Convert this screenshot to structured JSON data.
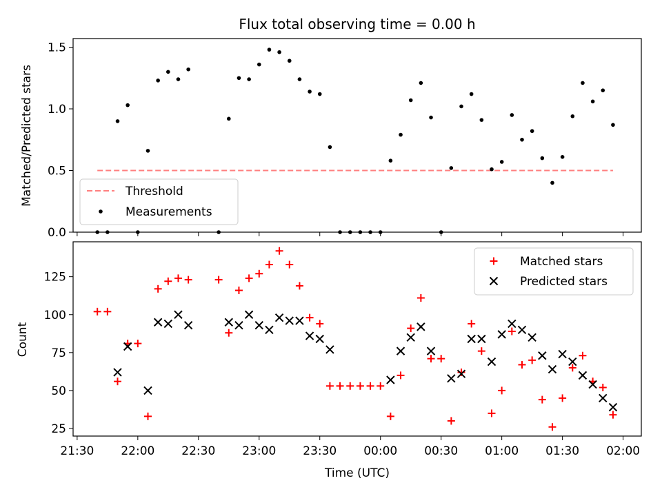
{
  "colors": {
    "threshold": "#ff7f7f",
    "matched": "#ff0000",
    "predicted": "#000000",
    "measurements": "#000000"
  },
  "chart_data": [
    {
      "type": "scatter",
      "title": "Flux total observing time = 0.00 h",
      "xlabel": "",
      "ylabel": "Matched/Predicted stars",
      "xlim": [
        "21:28",
        "02:09"
      ],
      "ylim": [
        0,
        1.57
      ],
      "yticks": [
        0.0,
        0.5,
        1.0,
        1.5
      ],
      "ytick_labels": [
        "0.0",
        "0.5",
        "1.0",
        "1.5"
      ],
      "legend_position": "lower-left",
      "threshold": {
        "name": "Threshold",
        "value": 0.5,
        "x_start": "21:40",
        "x_end": "01:55"
      },
      "series": [
        {
          "name": "Measurements",
          "x": [
            "21:40",
            "21:45",
            "21:50",
            "21:55",
            "22:00",
            "22:05",
            "22:10",
            "22:15",
            "22:20",
            "22:25",
            "22:40",
            "22:45",
            "22:50",
            "22:55",
            "23:00",
            "23:05",
            "23:10",
            "23:15",
            "23:20",
            "23:25",
            "23:30",
            "23:35",
            "23:40",
            "23:45",
            "23:50",
            "23:55",
            "00:00",
            "00:05",
            "00:10",
            "00:15",
            "00:20",
            "00:25",
            "00:30",
            "00:35",
            "00:40",
            "00:45",
            "00:50",
            "00:55",
            "01:00",
            "01:05",
            "01:10",
            "01:15",
            "01:20",
            "01:25",
            "01:30",
            "01:35",
            "01:40",
            "01:45",
            "01:50",
            "01:55"
          ],
          "y": [
            0.0,
            0.0,
            0.9,
            1.03,
            0.0,
            0.66,
            1.23,
            1.3,
            1.24,
            1.32,
            0.0,
            0.92,
            1.25,
            1.24,
            1.36,
            1.48,
            1.46,
            1.39,
            1.24,
            1.14,
            1.12,
            0.69,
            0.0,
            0.0,
            0.0,
            0.0,
            0.0,
            0.58,
            0.79,
            1.07,
            1.21,
            0.93,
            0.0,
            0.52,
            1.02,
            1.12,
            0.91,
            0.51,
            0.57,
            0.95,
            0.75,
            0.82,
            0.6,
            0.4,
            0.61,
            0.94,
            1.21,
            1.06,
            1.15,
            0.87
          ]
        }
      ]
    },
    {
      "type": "scatter",
      "title": "",
      "xlabel": "Time (UTC)",
      "ylabel": "Count",
      "xlim": [
        "21:28",
        "02:09"
      ],
      "ylim": [
        20,
        148
      ],
      "yticks": [
        25,
        50,
        75,
        100,
        125
      ],
      "ytick_labels": [
        "25",
        "50",
        "75",
        "100",
        "125"
      ],
      "xticks": [
        "21:30",
        "22:00",
        "22:30",
        "23:00",
        "23:30",
        "00:00",
        "00:30",
        "01:00",
        "01:30",
        "02:00"
      ],
      "legend_position": "upper-right",
      "series": [
        {
          "name": "Matched stars",
          "marker": "plus",
          "x": [
            "21:40",
            "21:45",
            "21:50",
            "21:55",
            "22:00",
            "22:05",
            "22:10",
            "22:15",
            "22:20",
            "22:25",
            "22:40",
            "22:45",
            "22:50",
            "22:55",
            "23:00",
            "23:05",
            "23:10",
            "23:15",
            "23:20",
            "23:25",
            "23:30",
            "23:35",
            "23:40",
            "23:45",
            "23:50",
            "23:55",
            "00:00",
            "00:05",
            "00:10",
            "00:15",
            "00:20",
            "00:25",
            "00:30",
            "00:35",
            "00:40",
            "00:45",
            "00:50",
            "00:55",
            "01:00",
            "01:05",
            "01:10",
            "01:15",
            "01:20",
            "01:25",
            "01:30",
            "01:35",
            "01:40",
            "01:45",
            "01:50",
            "01:55"
          ],
          "y": [
            102,
            102,
            56,
            81,
            81,
            33,
            117,
            122,
            124,
            123,
            123,
            88,
            116,
            124,
            127,
            133,
            142,
            133,
            119,
            98,
            94,
            53,
            53,
            53,
            53,
            53,
            53,
            33,
            60,
            91,
            111,
            71,
            71,
            30,
            62,
            94,
            76,
            35,
            50,
            89,
            67,
            70,
            44,
            26,
            45,
            65,
            73,
            56,
            52,
            34
          ]
        },
        {
          "name": "Predicted stars",
          "marker": "x",
          "x": [
            "21:50",
            "21:55",
            "22:05",
            "22:10",
            "22:15",
            "22:20",
            "22:25",
            "22:45",
            "22:50",
            "22:55",
            "23:00",
            "23:05",
            "23:10",
            "23:15",
            "23:20",
            "23:25",
            "23:30",
            "23:35",
            "00:05",
            "00:10",
            "00:15",
            "00:20",
            "00:25",
            "00:35",
            "00:40",
            "00:45",
            "00:50",
            "00:55",
            "01:00",
            "01:05",
            "01:10",
            "01:15",
            "01:20",
            "01:25",
            "01:30",
            "01:35",
            "01:40",
            "01:45",
            "01:50",
            "01:55"
          ],
          "y": [
            62,
            79,
            50,
            95,
            94,
            100,
            93,
            95,
            93,
            100,
            93,
            90,
            98,
            96,
            96,
            86,
            84,
            77,
            57,
            76,
            85,
            92,
            76,
            58,
            61,
            84,
            84,
            69,
            87,
            94,
            90,
            85,
            73,
            64,
            74,
            69,
            60,
            54,
            45,
            39
          ]
        }
      ]
    }
  ]
}
